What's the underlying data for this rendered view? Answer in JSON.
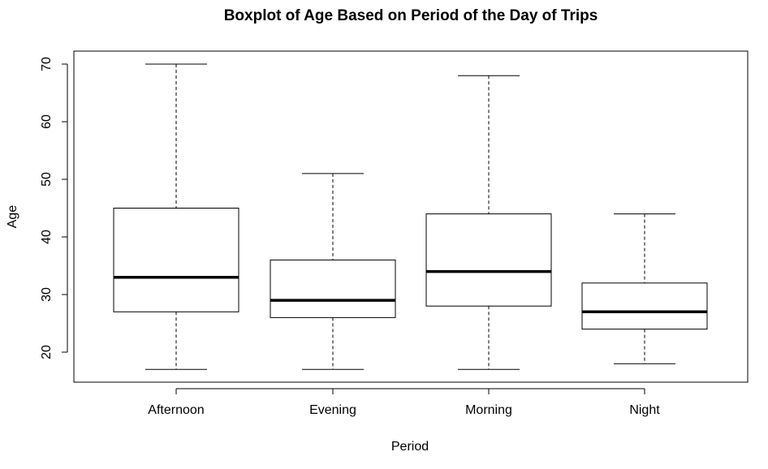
{
  "chart_data": {
    "type": "boxplot",
    "title": "Boxplot of Age Based on Period of the Day of Trips",
    "xlabel": "Period",
    "ylabel": "Age",
    "categories": [
      "Afternoon",
      "Evening",
      "Morning",
      "Night"
    ],
    "y_ticks": [
      20,
      30,
      40,
      50,
      60,
      70
    ],
    "ylim": [
      15,
      72
    ],
    "grid": false,
    "boxes": [
      {
        "category": "Afternoon",
        "min": 17,
        "q1": 27,
        "median": 33,
        "q3": 45,
        "max": 70
      },
      {
        "category": "Evening",
        "min": 17,
        "q1": 26,
        "median": 29,
        "q3": 36,
        "max": 51
      },
      {
        "category": "Morning",
        "min": 17,
        "q1": 28,
        "median": 34,
        "q3": 44,
        "max": 68
      },
      {
        "category": "Night",
        "min": 18,
        "q1": 24,
        "median": 27,
        "q3": 32,
        "max": 44
      }
    ]
  }
}
